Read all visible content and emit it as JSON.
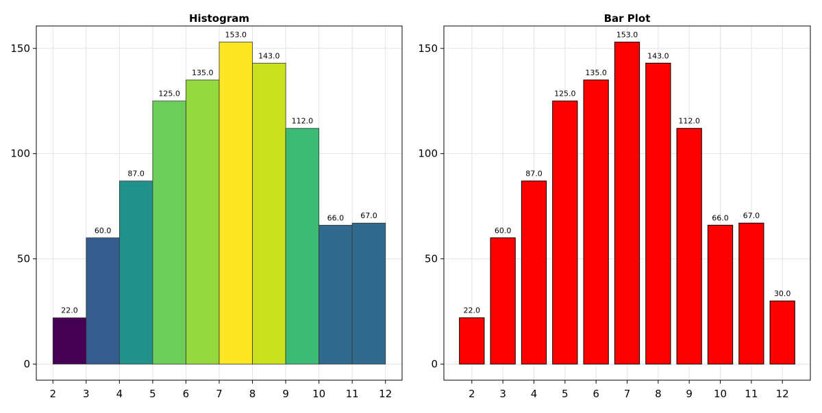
{
  "chart_data": [
    {
      "type": "bar",
      "title": "Histogram",
      "xlabel": "",
      "ylabel": "",
      "bin_edges": [
        2,
        3,
        4,
        5,
        6,
        7,
        8,
        9,
        10,
        11,
        12
      ],
      "values": [
        22,
        60,
        87,
        125,
        135,
        153,
        143,
        112,
        66,
        67
      ],
      "value_labels": [
        "22.0",
        "60.0",
        "87.0",
        "125.0",
        "135.0",
        "153.0",
        "143.0",
        "112.0",
        "66.0",
        "67.0"
      ],
      "colors": [
        "#440154",
        "#365c8d",
        "#21918c",
        "#6cce59",
        "#95d840",
        "#fde725",
        "#cae11f",
        "#3bbb75",
        "#31688e",
        "#306a8e"
      ],
      "xticks": [
        "2",
        "3",
        "4",
        "5",
        "6",
        "7",
        "8",
        "9",
        "10",
        "11",
        "12"
      ],
      "yticks": [
        "0",
        "50",
        "100",
        "150"
      ],
      "xlim": [
        1.5,
        12.5
      ],
      "ylim": [
        -7.65,
        160.65
      ],
      "grid": true
    },
    {
      "type": "bar",
      "title": "Bar Plot",
      "xlabel": "",
      "ylabel": "",
      "categories": [
        "2",
        "3",
        "4",
        "5",
        "6",
        "7",
        "8",
        "9",
        "10",
        "11",
        "12"
      ],
      "values": [
        22,
        60,
        87,
        125,
        135,
        153,
        143,
        112,
        66,
        67,
        30
      ],
      "value_labels": [
        "22.0",
        "60.0",
        "87.0",
        "125.0",
        "135.0",
        "153.0",
        "143.0",
        "112.0",
        "66.0",
        "67.0",
        "30.0"
      ],
      "bar_color": "#ff0000",
      "yticks": [
        "0",
        "50",
        "100",
        "150"
      ],
      "xlim": [
        1.1,
        12.9
      ],
      "ylim": [
        -7.65,
        160.65
      ],
      "grid": true
    }
  ]
}
